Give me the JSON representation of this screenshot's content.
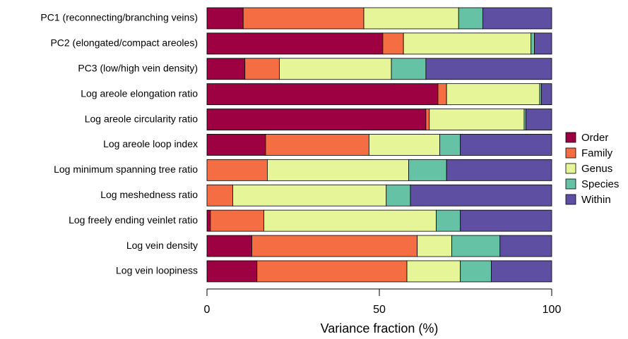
{
  "chart_data": {
    "type": "stacked-barh",
    "xlabel": "Variance fraction (%)",
    "categories": [
      "PC1 (reconnecting/branching veins)",
      "PC2 (elongated/compact areoles)",
      "PC3 (low/high vein density)",
      "Log areole elongation ratio",
      "Log areole circularity ratio",
      "Log areole loop index",
      "Log minimum spanning tree ratio",
      "Log meshedness ratio",
      "Log freely ending veinlet ratio",
      "Log vein density",
      "Log vein loopiness"
    ],
    "series": [
      {
        "name": "Order",
        "color": "#9e0142",
        "values": [
          10.5,
          51,
          11,
          67,
          63.5,
          17,
          0,
          0,
          1,
          13,
          14.5
        ]
      },
      {
        "name": "Family",
        "color": "#f46d43",
        "values": [
          35,
          6,
          10,
          2.5,
          1,
          30,
          17.5,
          7.5,
          15.5,
          48,
          43.5
        ]
      },
      {
        "name": "Genus",
        "color": "#e6f598",
        "values": [
          27.5,
          37,
          32.5,
          27,
          27.5,
          20.5,
          41,
          44.5,
          50,
          10,
          15.5
        ]
      },
      {
        "name": "Species",
        "color": "#66c2a5",
        "values": [
          7,
          1,
          10,
          0.5,
          0.5,
          6,
          11,
          7,
          7,
          14,
          9
        ]
      },
      {
        "name": "Within",
        "color": "#5e4fa2",
        "values": [
          20,
          5,
          36.5,
          3,
          7.5,
          26.5,
          30.5,
          41,
          26.5,
          15,
          17.5
        ]
      }
    ],
    "xlim": [
      0,
      100
    ],
    "xticks": [
      0,
      50,
      100
    ]
  }
}
